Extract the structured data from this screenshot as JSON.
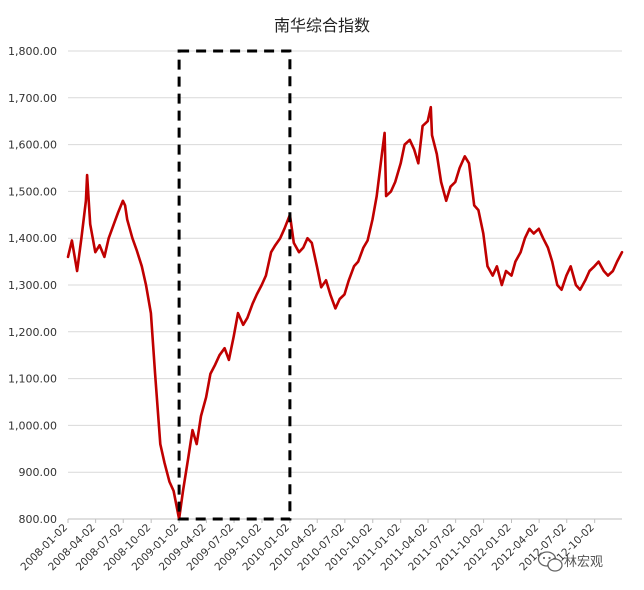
{
  "chart_data": {
    "type": "line",
    "title": "南华综合指数",
    "xlabel": "",
    "ylabel": "",
    "ylim": [
      800,
      1800
    ],
    "y_ticks": [
      "800.00",
      "900.00",
      "1,000.00",
      "1,100.00",
      "1,200.00",
      "1,300.00",
      "1,400.00",
      "1,500.00",
      "1,600.00",
      "1,700.00",
      "1,800.00"
    ],
    "x_ticks": [
      "2008-01-02",
      "2008-04-02",
      "2008-07-02",
      "2008-10-02",
      "2009-01-02",
      "2009-04-02",
      "2009-07-02",
      "2009-10-02",
      "2010-01-02",
      "2010-04-02",
      "2010-07-02",
      "2010-10-02",
      "2011-01-02",
      "2011-04-02",
      "2011-07-02",
      "2011-10-02",
      "2012-01-02",
      "2012-04-02",
      "2012-07-02",
      "2012-10-02"
    ],
    "grid": true,
    "legend": "none",
    "series_color": "#c00000",
    "highlight": {
      "x_start": "2009-01-02",
      "x_end": "2010-01-02",
      "y_range": [
        800,
        1800
      ],
      "style": "dashed"
    },
    "series": [
      {
        "x": [
          "2008-01-02",
          "2008-01-15",
          "2008-02-01",
          "2008-02-15",
          "2008-03-01",
          "2008-03-05",
          "2008-03-15",
          "2008-04-01",
          "2008-04-15",
          "2008-05-01",
          "2008-05-15",
          "2008-06-01",
          "2008-06-15",
          "2008-07-01",
          "2008-07-08",
          "2008-07-15",
          "2008-08-01",
          "2008-08-15",
          "2008-09-01",
          "2008-09-15",
          "2008-10-01",
          "2008-10-15",
          "2008-11-01",
          "2008-11-15",
          "2008-12-01",
          "2008-12-15",
          "2009-01-02",
          "2009-01-15",
          "2009-02-01",
          "2009-02-15",
          "2009-03-01",
          "2009-03-15",
          "2009-04-01",
          "2009-04-15",
          "2009-05-01",
          "2009-05-15",
          "2009-06-01",
          "2009-06-15",
          "2009-07-01",
          "2009-07-15",
          "2009-08-01",
          "2009-08-15",
          "2009-09-01",
          "2009-09-15",
          "2009-10-01",
          "2009-10-15",
          "2009-11-01",
          "2009-11-15",
          "2009-12-01",
          "2009-12-15",
          "2010-01-02",
          "2010-01-15",
          "2010-02-01",
          "2010-02-15",
          "2010-03-01",
          "2010-03-15",
          "2010-04-01",
          "2010-04-15",
          "2010-05-01",
          "2010-05-15",
          "2010-06-01",
          "2010-06-15",
          "2010-07-01",
          "2010-07-15",
          "2010-08-01",
          "2010-08-15",
          "2010-09-01",
          "2010-09-15",
          "2010-10-01",
          "2010-10-15",
          "2010-11-01",
          "2010-11-10",
          "2010-11-15",
          "2010-12-01",
          "2010-12-15",
          "2011-01-02",
          "2011-01-15",
          "2011-02-01",
          "2011-02-15",
          "2011-03-01",
          "2011-03-15",
          "2011-04-01",
          "2011-04-11",
          "2011-04-15",
          "2011-05-01",
          "2011-05-15",
          "2011-06-01",
          "2011-06-15",
          "2011-07-01",
          "2011-07-15",
          "2011-08-01",
          "2011-08-15",
          "2011-09-01",
          "2011-09-15",
          "2011-10-01",
          "2011-10-15",
          "2011-11-01",
          "2011-11-15",
          "2011-12-01",
          "2011-12-15",
          "2012-01-02",
          "2012-01-15",
          "2012-02-01",
          "2012-02-15",
          "2012-03-01",
          "2012-03-15",
          "2012-04-01",
          "2012-04-15",
          "2012-05-01",
          "2012-05-15",
          "2012-06-01",
          "2012-06-15",
          "2012-07-01",
          "2012-07-15",
          "2012-08-01",
          "2012-08-15",
          "2012-09-01",
          "2012-09-15",
          "2012-10-01",
          "2012-10-15",
          "2012-11-01",
          "2012-11-15",
          "2012-12-01",
          "2012-12-15",
          "2012-12-31"
        ],
        "y": [
          1360,
          1395,
          1330,
          1400,
          1480,
          1535,
          1430,
          1370,
          1385,
          1360,
          1400,
          1430,
          1455,
          1480,
          1470,
          1440,
          1400,
          1375,
          1340,
          1300,
          1240,
          1110,
          960,
          920,
          880,
          860,
          800,
          860,
          930,
          990,
          960,
          1020,
          1060,
          1110,
          1130,
          1150,
          1165,
          1140,
          1190,
          1240,
          1215,
          1230,
          1260,
          1280,
          1300,
          1320,
          1370,
          1385,
          1400,
          1420,
          1450,
          1390,
          1370,
          1380,
          1400,
          1390,
          1340,
          1295,
          1310,
          1280,
          1250,
          1270,
          1280,
          1310,
          1340,
          1350,
          1380,
          1395,
          1440,
          1490,
          1580,
          1625,
          1490,
          1500,
          1520,
          1560,
          1600,
          1610,
          1590,
          1560,
          1640,
          1650,
          1680,
          1620,
          1580,
          1520,
          1480,
          1510,
          1520,
          1550,
          1575,
          1560,
          1470,
          1460,
          1410,
          1340,
          1320,
          1340,
          1300,
          1330,
          1320,
          1350,
          1370,
          1400,
          1420,
          1410,
          1420,
          1400,
          1380,
          1350,
          1300,
          1290,
          1320,
          1340,
          1300,
          1290,
          1310,
          1330,
          1340,
          1350,
          1330,
          1320,
          1330,
          1350,
          1370
        ]
      }
    ]
  },
  "watermark": "林宏观",
  "watermark_icon": "wechat-icon"
}
